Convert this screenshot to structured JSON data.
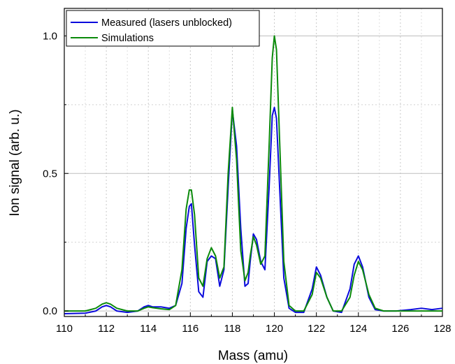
{
  "chart_data": {
    "type": "line",
    "title": "",
    "xlabel": "Mass (amu)",
    "ylabel": "Ion signal (arb. u.)",
    "xlim": [
      110,
      128
    ],
    "ylim": [
      -0.02,
      1.1
    ],
    "x_ticks": [
      110,
      112,
      114,
      116,
      118,
      120,
      122,
      124,
      126,
      128
    ],
    "x_tick_labels": [
      "110",
      "112",
      "114",
      "116",
      "118",
      "120",
      "122",
      "124",
      "126",
      "128"
    ],
    "y_ticks": [
      0.0,
      0.5,
      1.0
    ],
    "y_tick_labels": [
      "0.0",
      "0.5",
      "1.0"
    ],
    "grid": "dotted (major solid at 0.5 and 1.0)",
    "legend_position": "top-left",
    "series": [
      {
        "name": "Measured (lasers unblocked)",
        "color": "#0a0adc",
        "x": [
          110.0,
          111.0,
          111.5,
          111.8,
          112.0,
          112.2,
          112.5,
          113.0,
          113.5,
          113.8,
          114.0,
          114.2,
          114.6,
          115.0,
          115.3,
          115.6,
          115.8,
          115.95,
          116.05,
          116.2,
          116.4,
          116.6,
          116.8,
          117.0,
          117.2,
          117.4,
          117.6,
          117.8,
          118.0,
          118.2,
          118.4,
          118.6,
          118.75,
          118.85,
          119.0,
          119.15,
          119.35,
          119.55,
          119.75,
          119.9,
          120.0,
          120.1,
          120.25,
          120.45,
          120.7,
          121.0,
          121.4,
          121.8,
          122.0,
          122.2,
          122.5,
          122.8,
          123.2,
          123.6,
          123.8,
          124.0,
          124.2,
          124.5,
          124.8,
          125.2,
          125.8,
          126.5,
          127.0,
          127.5,
          128.0
        ],
        "y": [
          -0.01,
          -0.008,
          0.0,
          0.015,
          0.02,
          0.015,
          0.0,
          -0.005,
          0.0,
          0.015,
          0.02,
          0.015,
          0.015,
          0.01,
          0.02,
          0.1,
          0.3,
          0.38,
          0.39,
          0.24,
          0.07,
          0.05,
          0.18,
          0.2,
          0.19,
          0.09,
          0.15,
          0.45,
          0.73,
          0.6,
          0.3,
          0.09,
          0.1,
          0.18,
          0.28,
          0.26,
          0.18,
          0.15,
          0.45,
          0.71,
          0.74,
          0.7,
          0.45,
          0.12,
          0.01,
          -0.005,
          -0.005,
          0.08,
          0.16,
          0.13,
          0.05,
          0.0,
          -0.005,
          0.08,
          0.17,
          0.2,
          0.16,
          0.05,
          0.005,
          0.0,
          0.0,
          0.005,
          0.01,
          0.005,
          0.01
        ]
      },
      {
        "name": "Simulations",
        "color": "#0a8a0a",
        "x": [
          110.0,
          111.0,
          111.5,
          111.8,
          112.0,
          112.2,
          112.5,
          113.0,
          113.5,
          113.8,
          114.0,
          114.2,
          114.6,
          115.0,
          115.3,
          115.6,
          115.8,
          115.95,
          116.05,
          116.2,
          116.4,
          116.6,
          116.8,
          117.0,
          117.2,
          117.4,
          117.6,
          117.8,
          118.0,
          118.2,
          118.4,
          118.6,
          118.75,
          118.85,
          119.0,
          119.15,
          119.35,
          119.55,
          119.75,
          119.9,
          120.0,
          120.1,
          120.25,
          120.45,
          120.7,
          121.0,
          121.4,
          121.8,
          122.0,
          122.2,
          122.5,
          122.8,
          123.2,
          123.6,
          123.8,
          124.0,
          124.2,
          124.5,
          124.8,
          125.2,
          125.8,
          126.5,
          127.0,
          127.5,
          128.0
        ],
        "y": [
          0.0,
          0.0,
          0.01,
          0.025,
          0.03,
          0.025,
          0.01,
          0.0,
          0.0,
          0.01,
          0.015,
          0.012,
          0.008,
          0.005,
          0.02,
          0.15,
          0.37,
          0.44,
          0.44,
          0.35,
          0.12,
          0.09,
          0.19,
          0.23,
          0.2,
          0.12,
          0.16,
          0.5,
          0.74,
          0.55,
          0.22,
          0.11,
          0.14,
          0.2,
          0.27,
          0.24,
          0.17,
          0.2,
          0.6,
          0.92,
          1.0,
          0.95,
          0.62,
          0.18,
          0.02,
          0.0,
          0.0,
          0.06,
          0.14,
          0.12,
          0.05,
          0.0,
          0.0,
          0.05,
          0.13,
          0.18,
          0.15,
          0.06,
          0.01,
          0.0,
          0.0,
          0.0,
          0.0,
          0.0,
          0.0
        ]
      }
    ]
  }
}
